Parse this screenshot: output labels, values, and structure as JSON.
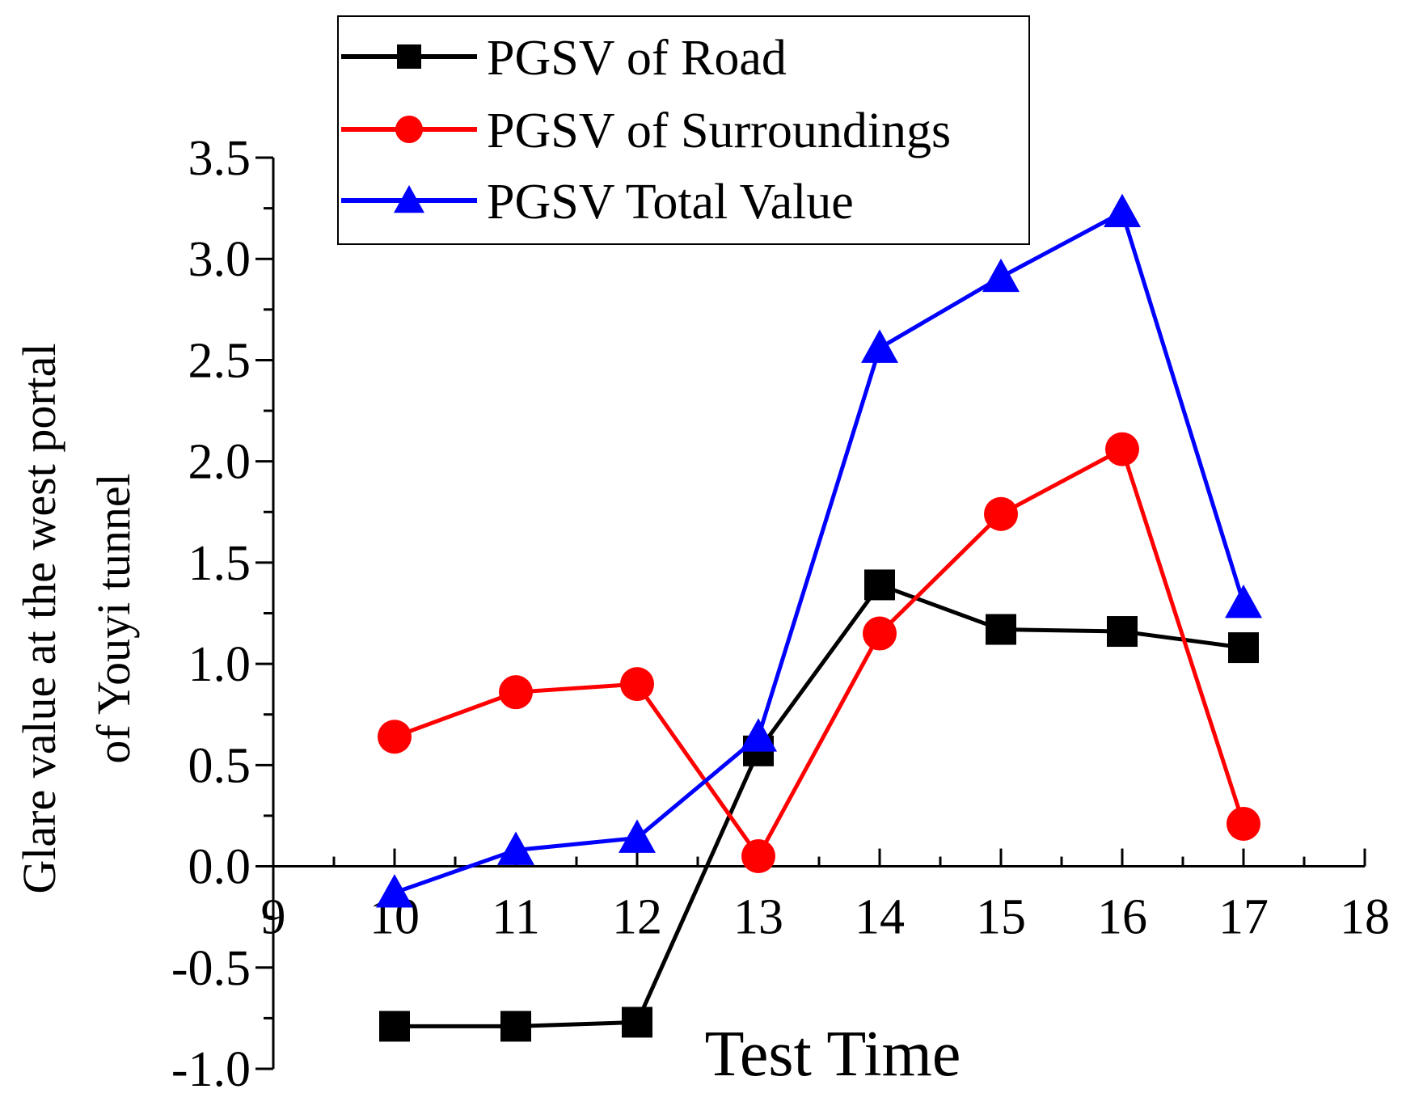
{
  "chart_data": {
    "type": "line",
    "title": "",
    "xlabel": "Test Time",
    "ylabel_lines": [
      "Glare value at the west portal",
      "of Youyi tunnel"
    ],
    "xlim": [
      9,
      18
    ],
    "ylim": [
      -1.0,
      3.5
    ],
    "x_ticks": [
      9,
      10,
      11,
      12,
      13,
      14,
      15,
      16,
      17,
      18
    ],
    "x_tick_labels": [
      "9",
      "10",
      "11",
      "12",
      "13",
      "14",
      "15",
      "16",
      "17",
      "18"
    ],
    "y_ticks": [
      -1.0,
      -0.5,
      0.0,
      0.5,
      1.0,
      1.5,
      2.0,
      2.5,
      3.0,
      3.5
    ],
    "y_tick_labels": [
      "-1.0",
      "-0.5",
      "0.0",
      "0.5",
      "1.0",
      "1.5",
      "2.0",
      "2.5",
      "3.0",
      "3.5"
    ],
    "grid": false,
    "legend_position": "top-center",
    "x": [
      10,
      11,
      12,
      13,
      14,
      15,
      16,
      17
    ],
    "series": [
      {
        "name": "PGSV of Road",
        "color": "#000000",
        "marker": "square",
        "values": [
          -0.79,
          -0.79,
          -0.77,
          0.57,
          1.39,
          1.17,
          1.16,
          1.08
        ]
      },
      {
        "name": "PGSV of Surroundings",
        "color": "#ff0000",
        "marker": "circle",
        "values": [
          0.64,
          0.86,
          0.9,
          0.05,
          1.15,
          1.74,
          2.06,
          0.21
        ]
      },
      {
        "name": "PGSV Total Value",
        "color": "#0000ff",
        "marker": "triangle",
        "values": [
          -0.13,
          0.08,
          0.14,
          0.64,
          2.56,
          2.91,
          3.23,
          1.3
        ]
      }
    ]
  }
}
